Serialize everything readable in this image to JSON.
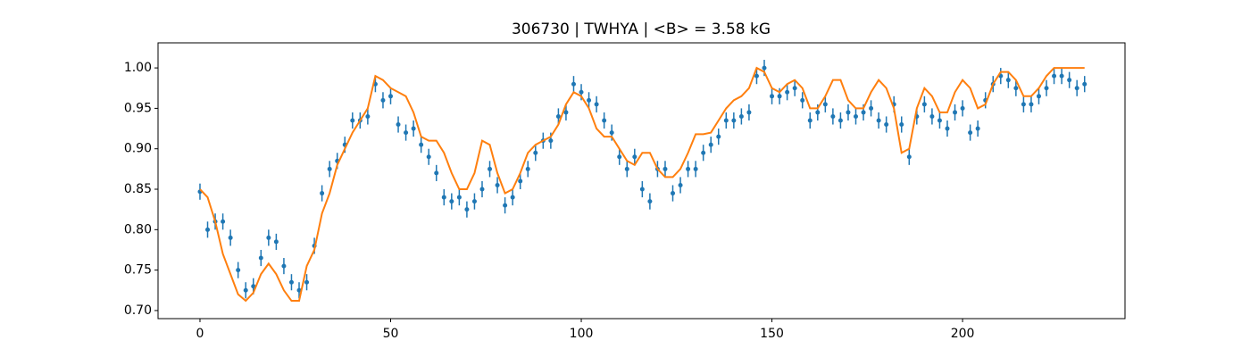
{
  "chart_data": {
    "type": "errorbar-line",
    "title": "306730 | TWHYA | <B> = 3.58 kG",
    "x": [
      0,
      2,
      4,
      6,
      8,
      10,
      12,
      14,
      16,
      18,
      20,
      22,
      24,
      26,
      28,
      30,
      32,
      34,
      36,
      38,
      40,
      42,
      44,
      46,
      48,
      50,
      52,
      54,
      56,
      58,
      60,
      62,
      64,
      66,
      68,
      70,
      72,
      74,
      76,
      78,
      80,
      82,
      84,
      86,
      88,
      90,
      92,
      94,
      96,
      98,
      100,
      102,
      104,
      106,
      108,
      110,
      112,
      114,
      116,
      118,
      120,
      122,
      124,
      126,
      128,
      130,
      132,
      134,
      136,
      138,
      140,
      142,
      144,
      146,
      148,
      150,
      152,
      154,
      156,
      158,
      160,
      162,
      164,
      166,
      168,
      170,
      172,
      174,
      176,
      178,
      180,
      182,
      184,
      186,
      188,
      190,
      192,
      194,
      196,
      198,
      200,
      202,
      204,
      206,
      208,
      210,
      212,
      214,
      216,
      218,
      220,
      222,
      224,
      226,
      228,
      230,
      232
    ],
    "error": 0.01,
    "series": [
      {
        "color": "#1f77b4",
        "values": [
          0.847,
          0.8,
          0.81,
          0.81,
          0.79,
          0.75,
          0.725,
          0.73,
          0.765,
          0.79,
          0.785,
          0.755,
          0.735,
          0.725,
          0.735,
          0.78,
          0.845,
          0.875,
          0.885,
          0.905,
          0.935,
          0.935,
          0.94,
          0.98,
          0.96,
          0.965,
          0.93,
          0.92,
          0.925,
          0.905,
          0.89,
          0.87,
          0.84,
          0.835,
          0.84,
          0.825,
          0.835,
          0.85,
          0.875,
          0.855,
          0.83,
          0.84,
          0.86,
          0.875,
          0.895,
          0.91,
          0.91,
          0.94,
          0.945,
          0.98,
          0.97,
          0.96,
          0.955,
          0.935,
          0.92,
          0.89,
          0.875,
          0.89,
          0.85,
          0.835,
          0.875,
          0.875,
          0.845,
          0.855,
          0.875,
          0.875,
          0.895,
          0.905,
          0.915,
          0.935,
          0.935,
          0.94,
          0.945,
          0.99,
          1.0,
          0.965,
          0.965,
          0.97,
          0.975,
          0.96,
          0.935,
          0.945,
          0.955,
          0.94,
          0.935,
          0.945,
          0.94,
          0.945,
          0.95,
          0.935,
          0.93,
          0.955,
          0.93,
          0.89,
          0.94,
          0.955,
          0.94,
          0.935,
          0.925,
          0.945,
          0.95,
          0.92,
          0.925,
          0.96,
          0.98,
          0.99,
          0.985,
          0.975,
          0.955,
          0.955,
          0.965,
          0.975,
          0.99,
          0.99,
          0.985,
          0.975,
          0.98
        ]
      },
      {
        "color": "#ff7f0e",
        "values": [
          0.85,
          0.84,
          0.81,
          0.77,
          0.745,
          0.72,
          0.712,
          0.722,
          0.745,
          0.758,
          0.745,
          0.725,
          0.712,
          0.712,
          0.755,
          0.775,
          0.82,
          0.845,
          0.88,
          0.9,
          0.92,
          0.935,
          0.95,
          0.99,
          0.985,
          0.975,
          0.97,
          0.965,
          0.945,
          0.915,
          0.91,
          0.91,
          0.895,
          0.87,
          0.85,
          0.85,
          0.87,
          0.91,
          0.905,
          0.87,
          0.845,
          0.85,
          0.87,
          0.895,
          0.905,
          0.91,
          0.915,
          0.93,
          0.955,
          0.97,
          0.965,
          0.95,
          0.925,
          0.915,
          0.915,
          0.9,
          0.885,
          0.88,
          0.895,
          0.895,
          0.875,
          0.865,
          0.865,
          0.875,
          0.895,
          0.918,
          0.918,
          0.92,
          0.935,
          0.95,
          0.96,
          0.965,
          0.975,
          1.0,
          0.995,
          0.975,
          0.97,
          0.98,
          0.985,
          0.975,
          0.95,
          0.95,
          0.965,
          0.985,
          0.985,
          0.96,
          0.95,
          0.95,
          0.97,
          0.985,
          0.975,
          0.95,
          0.895,
          0.9,
          0.95,
          0.975,
          0.965,
          0.945,
          0.945,
          0.97,
          0.985,
          0.975,
          0.95,
          0.955,
          0.98,
          0.995,
          0.995,
          0.985,
          0.965,
          0.965,
          0.975,
          0.99,
          1.0,
          1.0,
          1.0,
          1.0,
          1.0
        ]
      }
    ],
    "xlim": [
      -11.0,
      242.6
    ],
    "ylim": [
      0.69,
      1.031
    ],
    "xticks": [
      0,
      50,
      100,
      150,
      200
    ],
    "yticks": [
      {
        "value": 0.7,
        "label": "0.70"
      },
      {
        "value": 0.75,
        "label": "0.75"
      },
      {
        "value": 0.8,
        "label": "0.80"
      },
      {
        "value": 0.85,
        "label": "0.85"
      },
      {
        "value": 0.9,
        "label": "0.90"
      },
      {
        "value": 0.95,
        "label": "0.95"
      },
      {
        "value": 1.0,
        "label": "1.00"
      }
    ]
  }
}
